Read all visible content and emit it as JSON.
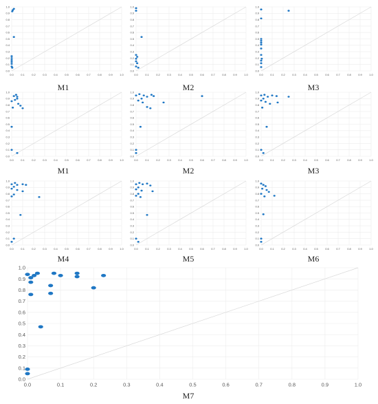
{
  "chart_data": [
    {
      "type": "scatter",
      "title": "M1",
      "xlim": [
        0,
        1
      ],
      "ylim": [
        0,
        1
      ],
      "grid": true,
      "ticks": [
        "0.0",
        "0.1",
        "0.2",
        "0.3",
        "0.4",
        "0.5",
        "0.6",
        "0.7",
        "0.8",
        "0.9",
        "1.0"
      ],
      "point_color": "#1f77c4",
      "points": [
        [
          0.01,
          0.95
        ],
        [
          0.02,
          0.97
        ],
        [
          0.005,
          0.93
        ],
        [
          0.02,
          0.53
        ],
        [
          0.0,
          0.23
        ],
        [
          0.0,
          0.2
        ],
        [
          0.0,
          0.17
        ],
        [
          0.0,
          0.14
        ],
        [
          0.0,
          0.11
        ],
        [
          0.0,
          0.07
        ],
        [
          0.005,
          0.05
        ]
      ]
    },
    {
      "type": "scatter",
      "title": "M2",
      "xlim": [
        0,
        1
      ],
      "ylim": [
        0,
        1
      ],
      "grid": true,
      "ticks": [
        "0.0",
        "0.1",
        "0.2",
        "0.3",
        "0.4",
        "0.5",
        "0.6",
        "0.7",
        "0.8",
        "0.9",
        "1.0"
      ],
      "point_color": "#1f77c4",
      "points": [
        [
          0.0,
          0.98
        ],
        [
          0.0,
          0.94
        ],
        [
          0.05,
          0.53
        ],
        [
          0.0,
          0.25
        ],
        [
          0.01,
          0.22
        ],
        [
          0.0,
          0.19
        ],
        [
          0.0,
          0.15
        ],
        [
          0.01,
          0.12
        ],
        [
          0.0,
          0.07
        ],
        [
          0.02,
          0.05
        ]
      ]
    },
    {
      "type": "scatter",
      "title": "M3",
      "xlim": [
        0,
        1
      ],
      "ylim": [
        0,
        1
      ],
      "grid": true,
      "ticks": [
        "0.0",
        "0.1",
        "0.2",
        "0.3",
        "0.4",
        "0.5",
        "0.6",
        "0.7",
        "0.8",
        "0.9",
        "1.0"
      ],
      "point_color": "#1f77c4",
      "points": [
        [
          0.0,
          0.96
        ],
        [
          0.25,
          0.94
        ],
        [
          0.0,
          0.82
        ],
        [
          0.0,
          0.5
        ],
        [
          0.0,
          0.47
        ],
        [
          0.0,
          0.44
        ],
        [
          0.0,
          0.41
        ],
        [
          0.0,
          0.35
        ],
        [
          0.0,
          0.25
        ],
        [
          0.005,
          0.19
        ],
        [
          0.0,
          0.16
        ],
        [
          0.0,
          0.12
        ],
        [
          0.0,
          0.06
        ]
      ]
    },
    {
      "type": "scatter",
      "title": "M1",
      "xlim": [
        0,
        1
      ],
      "ylim": [
        0,
        1
      ],
      "grid": true,
      "ticks": [
        "0.0",
        "0.1",
        "0.2",
        "0.3",
        "0.4",
        "0.5",
        "0.6",
        "0.7",
        "0.8",
        "0.9",
        "1.0"
      ],
      "point_color": "#1f77c4",
      "points": [
        [
          0.02,
          0.94
        ],
        [
          0.04,
          0.96
        ],
        [
          0.05,
          0.93
        ],
        [
          0.05,
          0.9
        ],
        [
          0.03,
          0.88
        ],
        [
          0.0,
          0.86
        ],
        [
          0.06,
          0.82
        ],
        [
          0.08,
          0.79
        ],
        [
          0.01,
          0.76
        ],
        [
          0.1,
          0.75
        ],
        [
          0.0,
          0.46
        ],
        [
          0.0,
          0.1
        ],
        [
          0.05,
          0.05
        ]
      ]
    },
    {
      "type": "scatter",
      "title": "M2",
      "xlim": [
        0,
        1
      ],
      "ylim": [
        0,
        1
      ],
      "grid": true,
      "ticks": [
        "0.0",
        "0.1",
        "0.2",
        "0.3",
        "0.4",
        "0.5",
        "0.6",
        "0.7",
        "0.8",
        "0.9",
        "1.0"
      ],
      "point_color": "#1f77c4",
      "points": [
        [
          0.0,
          0.95
        ],
        [
          0.03,
          0.97
        ],
        [
          0.07,
          0.95
        ],
        [
          0.1,
          0.93
        ],
        [
          0.14,
          0.96
        ],
        [
          0.16,
          0.94
        ],
        [
          0.05,
          0.9
        ],
        [
          0.02,
          0.87
        ],
        [
          0.06,
          0.84
        ],
        [
          0.25,
          0.84
        ],
        [
          0.1,
          0.77
        ],
        [
          0.13,
          0.75
        ],
        [
          0.6,
          0.94
        ],
        [
          0.04,
          0.46
        ],
        [
          0.0,
          0.1
        ],
        [
          0.0,
          0.05
        ]
      ]
    },
    {
      "type": "scatter",
      "title": "M3",
      "xlim": [
        0,
        1
      ],
      "ylim": [
        0,
        1
      ],
      "grid": true,
      "ticks": [
        "0.0",
        "0.1",
        "0.2",
        "0.3",
        "0.4",
        "0.5",
        "0.6",
        "0.7",
        "0.8",
        "0.9",
        "1.0"
      ],
      "point_color": "#1f77c4",
      "points": [
        [
          0.0,
          0.95
        ],
        [
          0.03,
          0.96
        ],
        [
          0.06,
          0.93
        ],
        [
          0.1,
          0.95
        ],
        [
          0.14,
          0.94
        ],
        [
          0.02,
          0.9
        ],
        [
          0.0,
          0.87
        ],
        [
          0.04,
          0.85
        ],
        [
          0.08,
          0.82
        ],
        [
          0.15,
          0.84
        ],
        [
          0.25,
          0.93
        ],
        [
          0.01,
          0.76
        ],
        [
          0.05,
          0.46
        ],
        [
          0.0,
          0.1
        ],
        [
          0.02,
          0.05
        ]
      ]
    },
    {
      "type": "scatter",
      "title": "M4",
      "xlim": [
        0,
        1
      ],
      "ylim": [
        0,
        1
      ],
      "grid": true,
      "ticks": [
        "0.0",
        "0.1",
        "0.2",
        "0.3",
        "0.4",
        "0.5",
        "0.6",
        "0.7",
        "0.8",
        "0.9",
        "1.0"
      ],
      "point_color": "#1f77c4",
      "points": [
        [
          0.0,
          0.95
        ],
        [
          0.03,
          0.97
        ],
        [
          0.05,
          0.94
        ],
        [
          0.1,
          0.95
        ],
        [
          0.13,
          0.94
        ],
        [
          0.02,
          0.91
        ],
        [
          0.0,
          0.88
        ],
        [
          0.05,
          0.86
        ],
        [
          0.1,
          0.84
        ],
        [
          0.02,
          0.79
        ],
        [
          0.0,
          0.76
        ],
        [
          0.25,
          0.75
        ],
        [
          0.08,
          0.47
        ],
        [
          0.02,
          0.1
        ],
        [
          0.0,
          0.05
        ]
      ]
    },
    {
      "type": "scatter",
      "title": "M5",
      "xlim": [
        0,
        1
      ],
      "ylim": [
        0,
        1
      ],
      "grid": true,
      "ticks": [
        "0.0",
        "0.1",
        "0.2",
        "0.3",
        "0.4",
        "0.5",
        "0.6",
        "0.7",
        "0.8",
        "0.9",
        "1.0"
      ],
      "point_color": "#1f77c4",
      "points": [
        [
          0.0,
          0.95
        ],
        [
          0.03,
          0.97
        ],
        [
          0.06,
          0.95
        ],
        [
          0.1,
          0.96
        ],
        [
          0.13,
          0.93
        ],
        [
          0.02,
          0.9
        ],
        [
          0.0,
          0.87
        ],
        [
          0.05,
          0.85
        ],
        [
          0.15,
          0.84
        ],
        [
          0.02,
          0.8
        ],
        [
          0.0,
          0.77
        ],
        [
          0.04,
          0.75
        ],
        [
          0.1,
          0.47
        ],
        [
          0.0,
          0.1
        ],
        [
          0.02,
          0.05
        ]
      ]
    },
    {
      "type": "scatter",
      "title": "M6",
      "xlim": [
        0,
        1
      ],
      "ylim": [
        0,
        1
      ],
      "grid": true,
      "ticks": [
        "0.0",
        "0.1",
        "0.2",
        "0.3",
        "0.4",
        "0.5",
        "0.6",
        "0.7",
        "0.8",
        "0.9",
        "1.0"
      ],
      "point_color": "#1f77c4",
      "points": [
        [
          0.0,
          0.96
        ],
        [
          0.02,
          0.94
        ],
        [
          0.04,
          0.92
        ],
        [
          0.01,
          0.88
        ],
        [
          0.05,
          0.86
        ],
        [
          0.07,
          0.83
        ],
        [
          0.0,
          0.8
        ],
        [
          0.12,
          0.77
        ],
        [
          0.03,
          0.76
        ],
        [
          0.02,
          0.48
        ],
        [
          0.0,
          0.1
        ],
        [
          0.0,
          0.05
        ]
      ]
    },
    {
      "type": "scatter",
      "title": "M7",
      "xlim": [
        0,
        1
      ],
      "ylim": [
        0,
        1
      ],
      "grid": true,
      "ticks": [
        "0.0",
        "0.1",
        "0.2",
        "0.3",
        "0.4",
        "0.5",
        "0.6",
        "0.7",
        "0.8",
        "0.9",
        "1.0"
      ],
      "point_color": "#1f77c4",
      "points": [
        [
          0.0,
          0.94
        ],
        [
          0.02,
          0.93
        ],
        [
          0.03,
          0.95
        ],
        [
          0.01,
          0.91
        ],
        [
          0.01,
          0.87
        ],
        [
          0.08,
          0.95
        ],
        [
          0.1,
          0.93
        ],
        [
          0.15,
          0.95
        ],
        [
          0.15,
          0.92
        ],
        [
          0.23,
          0.93
        ],
        [
          0.07,
          0.84
        ],
        [
          0.2,
          0.82
        ],
        [
          0.01,
          0.76
        ],
        [
          0.07,
          0.77
        ],
        [
          0.04,
          0.47
        ],
        [
          0.0,
          0.09
        ],
        [
          0.0,
          0.05
        ]
      ]
    }
  ]
}
